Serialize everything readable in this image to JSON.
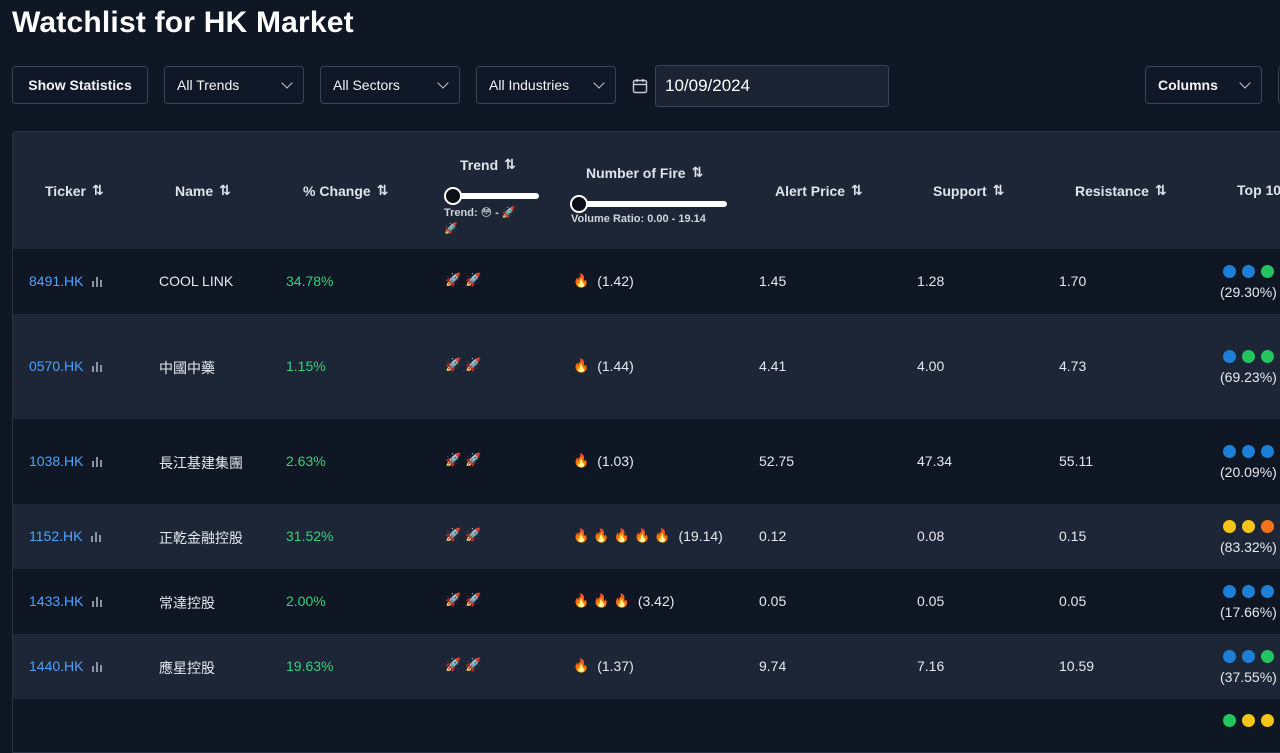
{
  "page": {
    "title": "Watchlist for HK Market"
  },
  "toolbar": {
    "show_statistics": "Show Statistics",
    "trends": "All Trends",
    "sectors": "All Sectors",
    "industries": "All Industries",
    "date": "10/09/2024",
    "columns": "Columns"
  },
  "table": {
    "headers": {
      "ticker": "Ticker",
      "name": "Name",
      "change": "% Change",
      "trend": "Trend",
      "fire": "Number of Fire",
      "alert": "Alert Price",
      "support": "Support",
      "resistance": "Resistance",
      "top10": "Top 10"
    },
    "trend_filter_label": "Trend: 😳 - 🚀",
    "trend_filter_label2": "🚀",
    "volume_ratio_label": "Volume Ratio: 0.00 - 19.14",
    "rows": [
      {
        "ticker": "8491.HK",
        "name": "COOL LINK",
        "change": "34.78%",
        "trend": "🚀 🚀",
        "fire": "🔥",
        "fire_ratio": "(1.42)",
        "alert": "1.45",
        "support": "1.28",
        "resistance": "1.70",
        "top10_pct": "(29.30%)",
        "dots": [
          "#1e7fd6",
          "#1e7fd6",
          "#22c55e"
        ]
      },
      {
        "ticker": "0570.HK",
        "name": "中國中藥",
        "change": "1.15%",
        "trend": "🚀 🚀",
        "fire": "🔥",
        "fire_ratio": "(1.44)",
        "alert": "4.41",
        "support": "4.00",
        "resistance": "4.73",
        "top10_pct": "(69.23%)",
        "dots": [
          "#1e7fd6",
          "#22c55e",
          "#22c55e"
        ]
      },
      {
        "ticker": "1038.HK",
        "name": "長江基建集團",
        "change": "2.63%",
        "trend": "🚀 🚀",
        "fire": "🔥",
        "fire_ratio": "(1.03)",
        "alert": "52.75",
        "support": "47.34",
        "resistance": "55.11",
        "top10_pct": "(20.09%)",
        "dots": [
          "#1e7fd6",
          "#1e7fd6",
          "#1e7fd6"
        ]
      },
      {
        "ticker": "1152.HK",
        "name": "正乾金融控股",
        "change": "31.52%",
        "trend": "🚀 🚀",
        "fire": "🔥 🔥 🔥 🔥 🔥",
        "fire_ratio": "(19.14)",
        "alert": "0.12",
        "support": "0.08",
        "resistance": "0.15",
        "top10_pct": "(83.32%)",
        "dots": [
          "#f5c518",
          "#f5c518",
          "#f97316"
        ]
      },
      {
        "ticker": "1433.HK",
        "name": "常達控股",
        "change": "2.00%",
        "trend": "🚀 🚀",
        "fire": "🔥 🔥 🔥",
        "fire_ratio": "(3.42)",
        "alert": "0.05",
        "support": "0.05",
        "resistance": "0.05",
        "top10_pct": "(17.66%)",
        "dots": [
          "#1e7fd6",
          "#1e7fd6",
          "#1e7fd6"
        ]
      },
      {
        "ticker": "1440.HK",
        "name": "應星控股",
        "change": "19.63%",
        "trend": "🚀 🚀",
        "fire": "🔥",
        "fire_ratio": "(1.37)",
        "alert": "9.74",
        "support": "7.16",
        "resistance": "10.59",
        "top10_pct": "(37.55%)",
        "dots": [
          "#1e7fd6",
          "#1e7fd6",
          "#22c55e"
        ]
      }
    ]
  }
}
